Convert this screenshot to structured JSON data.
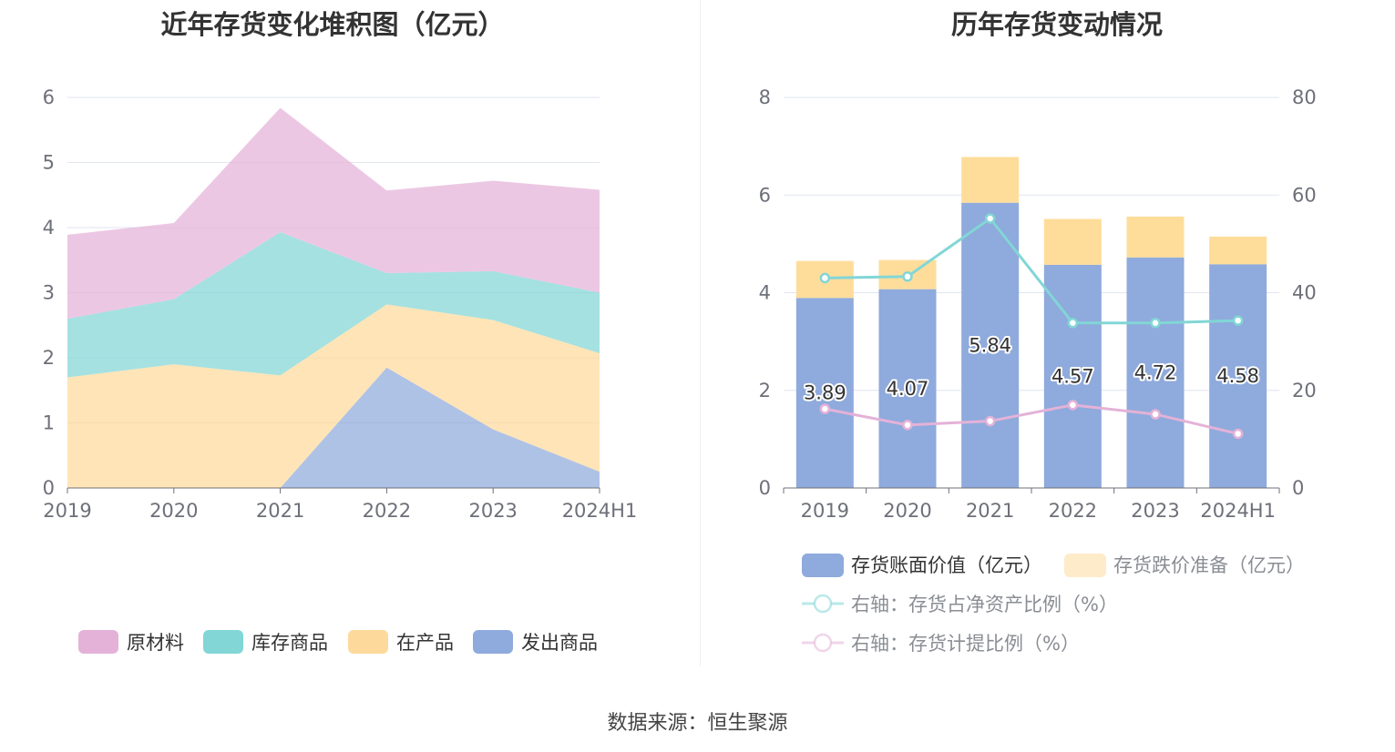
{
  "source_text": "数据来源：恒生聚源",
  "chart_data": [
    {
      "type": "area",
      "stacked": true,
      "title": "近年存货变化堆积图（亿元）",
      "categories": [
        "2019",
        "2020",
        "2021",
        "2022",
        "2023",
        "2024H1"
      ],
      "y_ticks": [
        "0",
        "1",
        "2",
        "3",
        "4",
        "5",
        "6"
      ],
      "ylim": [
        0,
        6
      ],
      "series": [
        {
          "name": "发出商品",
          "color": "#8faadc",
          "values": [
            0,
            0,
            0,
            1.85,
            0.9,
            0.25
          ]
        },
        {
          "name": "在产品",
          "color": "#fdd99b",
          "values": [
            1.7,
            1.9,
            1.73,
            0.97,
            1.68,
            1.82
          ]
        },
        {
          "name": "库存商品",
          "color": "#82d6d6",
          "values": [
            0.9,
            1.0,
            2.2,
            0.48,
            0.75,
            0.93
          ]
        },
        {
          "name": "原材料",
          "color": "#e4b2d8",
          "values": [
            1.29,
            1.17,
            1.91,
            1.27,
            1.39,
            1.58
          ]
        }
      ],
      "legend_order": [
        "原材料",
        "库存商品",
        "在产品",
        "发出商品"
      ]
    },
    {
      "type": "bar",
      "stacked": true,
      "title": "历年存货变动情况",
      "categories": [
        "2019",
        "2020",
        "2021",
        "2022",
        "2023",
        "2024H1"
      ],
      "y_ticks_left": [
        "0",
        "2",
        "4",
        "6",
        "8"
      ],
      "ylim_left": [
        0,
        8
      ],
      "y_ticks_right": [
        "0",
        "20",
        "40",
        "60",
        "80"
      ],
      "ylim_right": [
        0,
        80
      ],
      "bars": [
        {
          "name": "存货账面价值（亿元）",
          "color": "#8faadc",
          "values": [
            3.89,
            4.07,
            5.84,
            4.57,
            4.72,
            4.58
          ],
          "labels": [
            "3.89",
            "4.07",
            "5.84",
            "4.57",
            "4.72",
            "4.58"
          ]
        },
        {
          "name": "存货跌价准备（亿元）",
          "color": "#fedd9b",
          "legend_color": "#fdebc9",
          "values": [
            0.76,
            0.6,
            0.94,
            0.94,
            0.84,
            0.57
          ]
        }
      ],
      "lines": [
        {
          "name": "右轴：存货占净资产比例（%）",
          "color": "#82d6d6",
          "axis": "right",
          "values": [
            43.0,
            43.3,
            55.2,
            33.8,
            33.8,
            34.3
          ]
        },
        {
          "name": "右轴：存货计提比例（%）",
          "color": "#e4b2d8",
          "axis": "right",
          "values": [
            16.2,
            12.9,
            13.7,
            17.0,
            15.1,
            11.1
          ]
        }
      ]
    }
  ]
}
